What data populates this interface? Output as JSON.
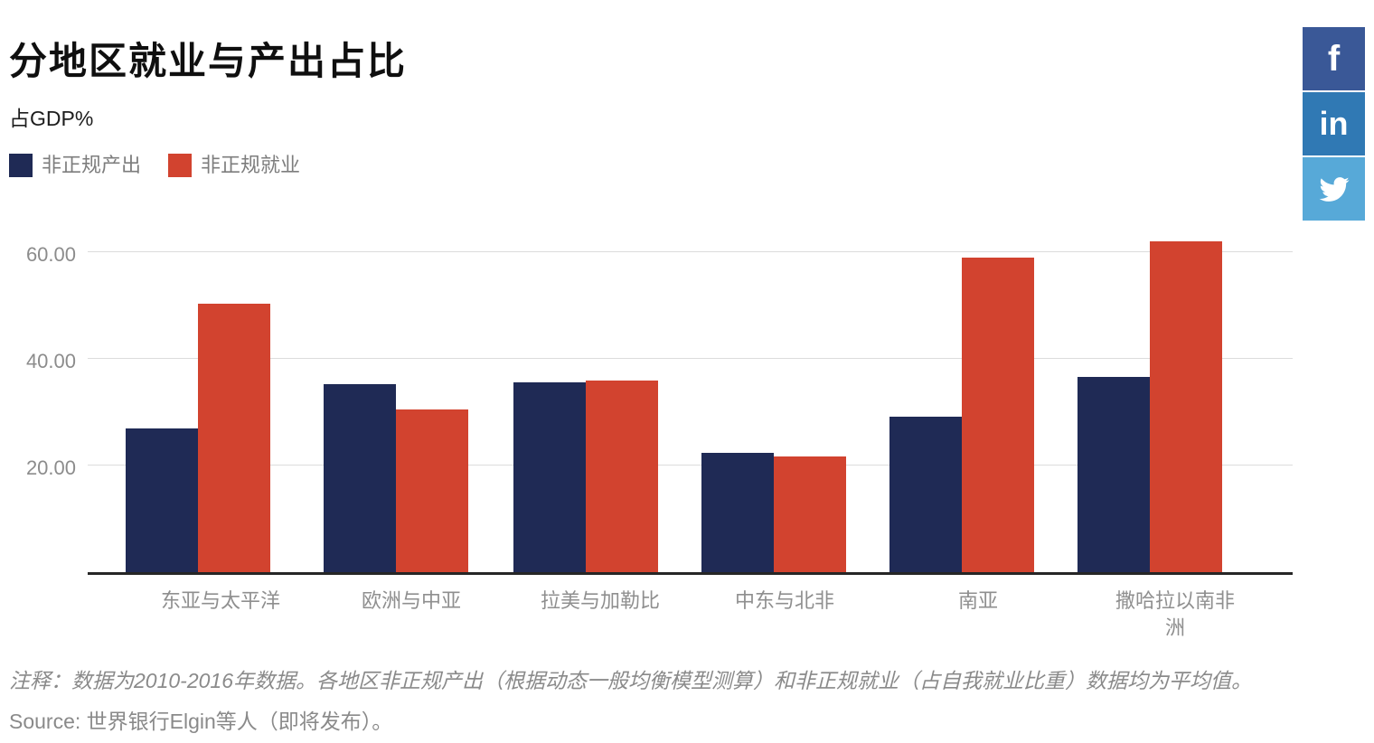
{
  "header": {
    "title": "分地区就业与产出占比",
    "subtitle": "占GDP%"
  },
  "chart_data": {
    "type": "bar",
    "title": "分地区就业与产出占比",
    "ylabel": "占GDP%",
    "xlabel": "",
    "categories": [
      "东亚与太平洋",
      "欧洲与中亚",
      "拉美与加勒比",
      "中东与北非",
      "南亚",
      "撒哈拉以南非洲"
    ],
    "series": [
      {
        "name": "非正规产出",
        "color": "#1f2a55",
        "values": [
          26.9,
          35.3,
          35.6,
          22.4,
          29.2,
          36.6
        ]
      },
      {
        "name": "非正规就业",
        "color": "#d2432f",
        "values": [
          50.4,
          30.6,
          36.0,
          21.7,
          59.0,
          62.1
        ]
      }
    ],
    "yticks": [
      "20.00",
      "40.00",
      "60.00"
    ],
    "ytick_values": [
      20,
      40,
      60
    ],
    "ylim": [
      0,
      65.5
    ],
    "grid": true,
    "legend_position": "top-left"
  },
  "footer": {
    "note": "注释：数据为2010-2016年数据。各地区非正规产出（根据动态一般均衡模型测算）和非正规就业（占自我就业比重）数据均为平均值。",
    "source": "Source: 世界银行Elgin等人（即将发布）。"
  },
  "share": {
    "facebook": {
      "glyph": "f",
      "color": "#3a5897"
    },
    "linkedin": {
      "glyph": "in",
      "color": "#3079b4"
    },
    "twitter": {
      "color": "#57a9d8"
    }
  }
}
